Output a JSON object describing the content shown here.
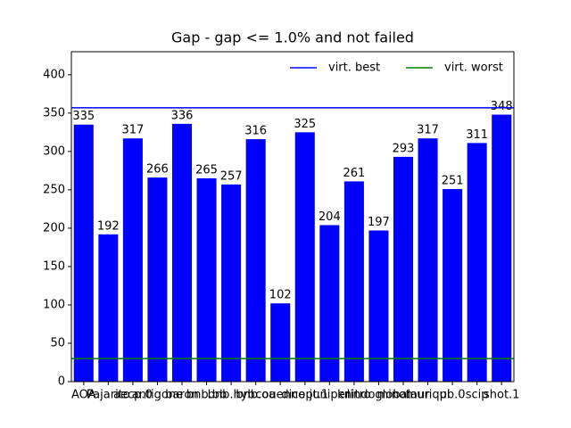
{
  "chart_data": {
    "type": "bar",
    "title": "Gap - gap <= 1.0% and not failed",
    "categories": [
      "AOA",
      "Pajarito",
      "aecp.0",
      "antigone",
      "baron",
      "bnb.bb",
      "bnb.hyb",
      "bnb.oa",
      "couenne",
      "dicopt.1",
      "juniper",
      "knitro",
      "lindoglobal",
      "minotaur",
      "muriqui",
      "pb.0",
      "scip",
      "shot.1"
    ],
    "values": [
      335,
      192,
      317,
      266,
      336,
      265,
      257,
      316,
      102,
      325,
      204,
      261,
      197,
      293,
      317,
      251,
      311,
      348
    ],
    "color": "#0000ff",
    "lines": [
      {
        "name": "virt. best",
        "color": "#0000ff",
        "value": 357
      },
      {
        "name": "virt. worst",
        "color": "#008000",
        "value": 30
      }
    ],
    "ylim": [
      0,
      430
    ],
    "yticks": [
      0,
      50,
      100,
      150,
      200,
      250,
      300,
      350,
      400
    ],
    "legend": "upper right"
  }
}
